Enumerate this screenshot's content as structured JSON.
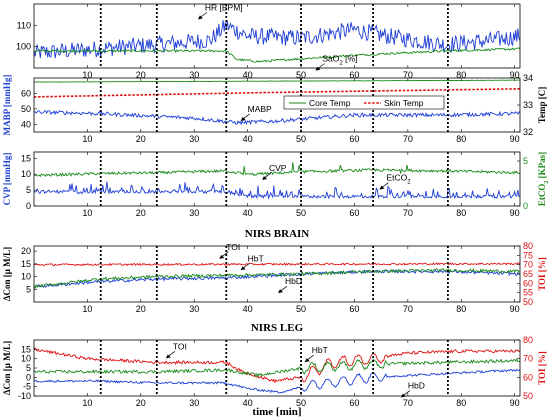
{
  "colors": {
    "blue": "#1f3fd6",
    "green": "#1a8a1a",
    "red": "#e01010",
    "greenAxis": "#1a8a1a",
    "redAxis": "#e01010",
    "blueAxis": "#1f3fd6"
  },
  "chart_data": [
    {
      "type": "line",
      "title": "",
      "xlim": [
        0,
        91
      ],
      "xticks": [
        10,
        20,
        30,
        40,
        50,
        60,
        70,
        80,
        90
      ],
      "ylim": [
        90,
        120
      ],
      "yticks": [
        100,
        110
      ],
      "ylabel": "",
      "events": [
        12.5,
        23,
        36,
        50,
        63.5,
        77.5
      ],
      "series": [
        {
          "name": "HR [BPM]",
          "color": "blue",
          "base": 97,
          "noise": 4,
          "segments": [
            [
              0,
              97
            ],
            [
              12,
              99
            ],
            [
              23,
              101
            ],
            [
              33,
              103
            ],
            [
              36,
              110
            ],
            [
              40,
              105
            ],
            [
              50,
              104
            ],
            [
              60,
              108
            ],
            [
              66,
              105
            ],
            [
              77,
              101
            ],
            [
              86,
              103
            ],
            [
              91,
              105
            ]
          ]
        },
        {
          "name": "SaO2 [%]",
          "color": "green",
          "base": 98,
          "noise": 0.5,
          "segments": [
            [
              0,
              98
            ],
            [
              36,
              98
            ],
            [
              38,
              94
            ],
            [
              42,
              93
            ],
            [
              48,
              94
            ],
            [
              60,
              96
            ],
            [
              77,
              98
            ],
            [
              91,
              99
            ]
          ]
        }
      ],
      "annotations": [
        {
          "text": "HR [BPM]",
          "x": 32,
          "y": 117
        },
        {
          "text": "SaO",
          "sub": "2",
          "tail": " [%]",
          "x": 54,
          "y": 93
        }
      ]
    },
    {
      "type": "line",
      "title": "",
      "xlim": [
        0,
        91
      ],
      "xticks": [
        10,
        20,
        30,
        40,
        50,
        60,
        70,
        80,
        90
      ],
      "ylim": [
        35,
        70
      ],
      "yticks": [
        40,
        50,
        60
      ],
      "ylabel": "MABP [mmHg]",
      "y2lim": [
        32,
        34
      ],
      "y2ticks": [
        32,
        33,
        34
      ],
      "y2label": "Temp [C]",
      "events": [
        12.5,
        23,
        36,
        50,
        63.5,
        77.5
      ],
      "series": [
        {
          "name": "Core Temp",
          "color": "green",
          "axis": "right",
          "segments": [
            [
              0,
              33.85
            ],
            [
              91,
              33.92
            ]
          ],
          "noise": 0.005
        },
        {
          "name": "Skin Temp",
          "color": "red",
          "axis": "right",
          "dashed": true,
          "segments": [
            [
              0,
              33.3
            ],
            [
              40,
              33.45
            ],
            [
              91,
              33.6
            ]
          ],
          "noise": 0
        },
        {
          "name": "MABP",
          "color": "blue",
          "axis": "left",
          "segments": [
            [
              0,
              48
            ],
            [
              12,
              47
            ],
            [
              30,
              44
            ],
            [
              38,
              41
            ],
            [
              45,
              42
            ],
            [
              60,
              46
            ],
            [
              77,
              46
            ],
            [
              91,
              47
            ]
          ],
          "noise": 1.2
        }
      ],
      "legend": [
        "Core Temp",
        "Skin Temp"
      ],
      "annotations": [
        {
          "text": "MABP",
          "x": 40,
          "y": 48
        }
      ]
    },
    {
      "type": "line",
      "title": "",
      "xlim": [
        0,
        91
      ],
      "xticks": [
        10,
        20,
        30,
        40,
        50,
        60,
        70,
        80,
        90
      ],
      "ylim": [
        0,
        17
      ],
      "yticks": [
        0,
        5,
        10,
        15
      ],
      "ylabel": "CVP [mmHg]",
      "y2lim": [
        0,
        6
      ],
      "y2ticks": [
        0,
        5
      ],
      "y2label": "EtCO2 [KPas]",
      "events": [
        12.5,
        23,
        36,
        50,
        63.5,
        77.5
      ],
      "series": [
        {
          "name": "EtCO2",
          "color": "green",
          "axis": "right",
          "segments": [
            [
              0,
              3.4
            ],
            [
              12,
              3.6
            ],
            [
              23,
              3.7
            ],
            [
              36,
              3.9
            ],
            [
              40,
              3.5
            ],
            [
              50,
              3.8
            ],
            [
              63,
              4.0
            ],
            [
              77,
              3.9
            ],
            [
              91,
              3.7
            ]
          ],
          "noise": 0.15
        },
        {
          "name": "CVP",
          "color": "blue",
          "axis": "left",
          "segments": [
            [
              0,
              4.5
            ],
            [
              36,
              4.5
            ],
            [
              40,
              3
            ],
            [
              50,
              3
            ],
            [
              91,
              3
            ]
          ],
          "noise": 0.5
        }
      ],
      "annotations": [
        {
          "text": "CVP",
          "x": 44,
          "y": 11
        },
        {
          "text": "EtCO",
          "sub": "2",
          "tail": "",
          "x": 66,
          "y": 8
        }
      ]
    },
    {
      "type": "line",
      "title": "NIRS BRAIN",
      "xlim": [
        0,
        91
      ],
      "xticks": [
        10,
        20,
        30,
        40,
        50,
        60,
        70,
        80,
        90
      ],
      "ylim": [
        0,
        22
      ],
      "yticks": [
        5,
        10,
        15,
        20
      ],
      "ylabel": "ΔCon [μ M/L]",
      "y2lim": [
        50,
        80
      ],
      "y2ticks": [
        50,
        55,
        60,
        65,
        70,
        75,
        80
      ],
      "y2label": "TOI [%]",
      "events": [
        12.5,
        23,
        36,
        50,
        63.5,
        77.5
      ],
      "series": [
        {
          "name": "TOI",
          "color": "red",
          "axis": "right",
          "segments": [
            [
              0,
              70
            ],
            [
              91,
              70.5
            ]
          ],
          "noise": 0.5
        },
        {
          "name": "HbD",
          "color": "blue",
          "axis": "left",
          "segments": [
            [
              0,
              6
            ],
            [
              12,
              8
            ],
            [
              23,
              9
            ],
            [
              36,
              9.5
            ],
            [
              50,
              11
            ],
            [
              63,
              12
            ],
            [
              77,
              12
            ],
            [
              91,
              11
            ]
          ],
          "noise": 0.6
        },
        {
          "name": "HbT",
          "color": "green",
          "axis": "left",
          "segments": [
            [
              0,
              6
            ],
            [
              12,
              9
            ],
            [
              23,
              10
            ],
            [
              36,
              10.5
            ],
            [
              50,
              11
            ],
            [
              63,
              12
            ],
            [
              77,
              12.5
            ],
            [
              91,
              12
            ]
          ],
          "noise": 0.6
        }
      ],
      "annotations": [
        {
          "text": "TOI",
          "x": 36,
          "y": 20.5
        },
        {
          "text": "HbT",
          "x": 40,
          "y": 16
        },
        {
          "text": "HbD",
          "x": 47,
          "y": 7
        }
      ]
    },
    {
      "type": "line",
      "title": "NIRS LEG",
      "xlim": [
        0,
        91
      ],
      "xticks": [
        10,
        20,
        30,
        40,
        50,
        60,
        70,
        80,
        90
      ],
      "ylim": [
        -10,
        20
      ],
      "yticks": [
        -10,
        -5,
        0,
        5,
        10,
        15
      ],
      "ylabel": "ΔCon [μ M/L]",
      "y2lim": [
        50,
        80
      ],
      "y2ticks": [
        50,
        60,
        70,
        80
      ],
      "y2label": "TOI [%]",
      "xlabel": "time [min]",
      "events": [
        12.5,
        23,
        36,
        50,
        63.5,
        77.5
      ],
      "series": [
        {
          "name": "TOI",
          "color": "red",
          "axis": "right",
          "segments": [
            [
              0,
              75
            ],
            [
              10,
              70
            ],
            [
              23,
              68
            ],
            [
              36,
              68
            ],
            [
              39,
              63
            ],
            [
              45,
              58
            ],
            [
              50,
              60
            ],
            [
              56,
              68
            ],
            [
              63,
              70
            ],
            [
              70,
              73
            ],
            [
              80,
              74
            ],
            [
              91,
              74
            ]
          ],
          "noise": 0.8
        },
        {
          "name": "HbT",
          "color": "green",
          "axis": "left",
          "segments": [
            [
              0,
              3
            ],
            [
              12,
              3
            ],
            [
              23,
              3
            ],
            [
              36,
              4
            ],
            [
              42,
              1
            ],
            [
              50,
              5
            ],
            [
              63,
              7
            ],
            [
              77,
              8
            ],
            [
              91,
              9
            ]
          ],
          "noise": 0.8
        },
        {
          "name": "HbD",
          "color": "blue",
          "axis": "left",
          "segments": [
            [
              0,
              -2
            ],
            [
              12,
              -2
            ],
            [
              23,
              -3
            ],
            [
              36,
              -3
            ],
            [
              40,
              -6
            ],
            [
              46,
              -8
            ],
            [
              52,
              -4
            ],
            [
              63,
              0
            ],
            [
              77,
              2
            ],
            [
              91,
              4
            ]
          ],
          "noise": 0.6
        }
      ],
      "annotations": [
        {
          "text": "TOI",
          "x": 26,
          "y": 15
        },
        {
          "text": "HbT",
          "x": 52,
          "y": 13
        },
        {
          "text": "HbD",
          "x": 70,
          "y": -6
        }
      ]
    }
  ],
  "xaxis_label": "time [min]"
}
